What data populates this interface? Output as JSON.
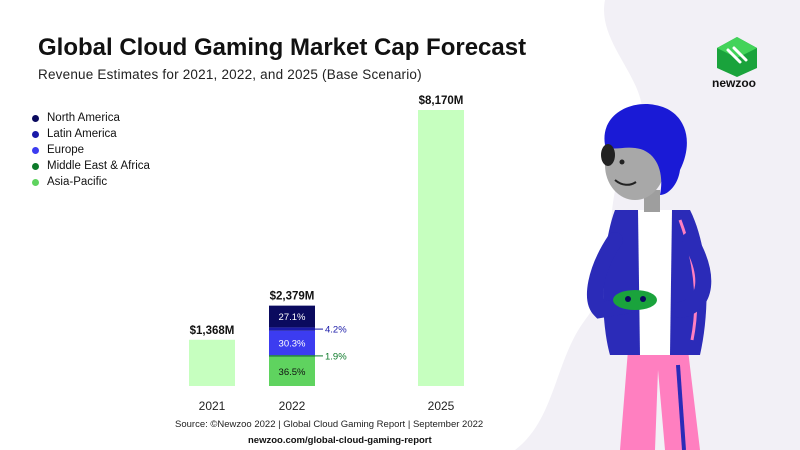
{
  "header": {
    "title": "Global Cloud Gaming Market Cap Forecast",
    "subtitle": "Revenue Estimates for 2021, 2022, and 2025 (Base Scenario)"
  },
  "brand": {
    "name": "newzoo",
    "icon": "newzoo-logo-icon"
  },
  "legend": [
    {
      "label": "North America",
      "color": "#0a0a5e"
    },
    {
      "label": "Latin America",
      "color": "#1a1aa8"
    },
    {
      "label": "Europe",
      "color": "#3c3cf0"
    },
    {
      "label": "Middle East & Africa",
      "color": "#0d7a2a"
    },
    {
      "label": "Asia-Pacific",
      "color": "#5fd35f"
    }
  ],
  "chart_data": {
    "type": "bar",
    "categories": [
      "2021",
      "2022",
      "2025"
    ],
    "values": [
      1368,
      2379,
      8170
    ],
    "value_labels": [
      "$1,368M",
      "$2,379M",
      "$8,170M"
    ],
    "unit": "$M",
    "bar_color": "#c6ffbf",
    "breakdown_2022": [
      {
        "region": "North America",
        "share_label": "27.1%",
        "share": 27.1,
        "color": "#0a0a5e"
      },
      {
        "region": "Latin America",
        "share_label": "4.2%",
        "share": 4.2,
        "color": "#1a1aa8"
      },
      {
        "region": "Europe",
        "share_label": "30.3%",
        "share": 30.3,
        "color": "#3c3cf0"
      },
      {
        "region": "Middle East & Africa",
        "share_label": "1.9%",
        "share": 1.9,
        "color": "#0d7a2a"
      },
      {
        "region": "Asia-Pacific",
        "share_label": "36.5%",
        "share": 36.5,
        "color": "#5fd35f"
      }
    ],
    "grid": false,
    "legend_position": "top-left"
  },
  "footer": {
    "source": "Source: ©Newzoo 2022 | Global Cloud Gaming Report | September 2022",
    "url": "newzoo.com/global-cloud-gaming-report"
  },
  "illustration": {
    "icon": "gamer-illustration-icon"
  }
}
